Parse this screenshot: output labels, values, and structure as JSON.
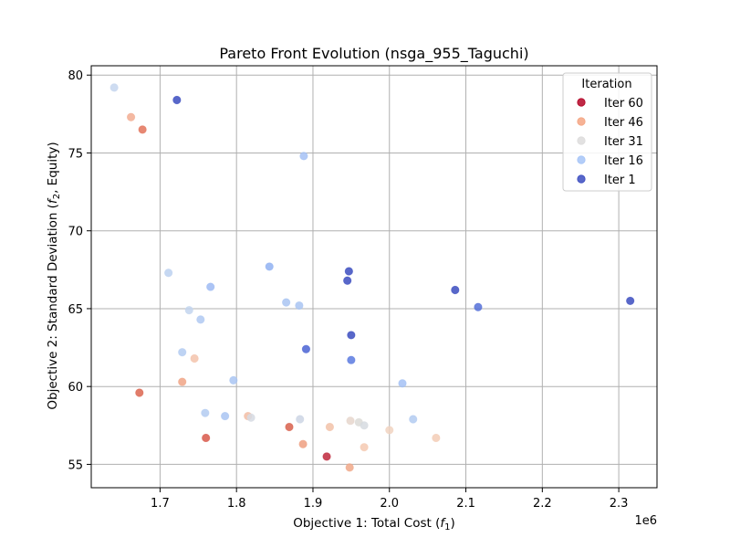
{
  "chart_data": {
    "type": "scatter",
    "title": "Pareto Front Evolution (nsga_955_Taguchi)",
    "xlabel": "Objective 1: Total Cost (f1)",
    "xlabel_main": "Objective 1: Total Cost (",
    "xlabel_var": "f",
    "xlabel_sub": "1",
    "xlabel_end": ")",
    "ylabel_main": "Objective 2: Standard Deviation (",
    "ylabel_var": "f",
    "ylabel_sub": "2",
    "ylabel_end": ", Equity)",
    "x_offset_label": "1e6",
    "xlim": [
      1.61,
      2.35
    ],
    "ylim": [
      53.5,
      80.6
    ],
    "x_ticks": [
      1.7,
      1.8,
      1.9,
      2.0,
      2.1,
      2.2,
      2.3
    ],
    "x_tick_labels": [
      "1.7",
      "1.8",
      "1.9",
      "2.0",
      "2.1",
      "2.2",
      "2.3"
    ],
    "y_ticks": [
      55,
      60,
      65,
      70,
      75,
      80
    ],
    "y_tick_labels": [
      "55",
      "60",
      "65",
      "70",
      "75",
      "80"
    ],
    "grid": true,
    "legend": {
      "title": "Iteration",
      "placement": "top-right"
    },
    "series": [
      {
        "name": "Iter 60",
        "color": "#b40426",
        "points": [
          {
            "x": 1.918,
            "y": 55.5,
            "c": "#c0283c"
          }
        ]
      },
      {
        "name": "Iter 46",
        "color": "#f4a582",
        "points": [
          {
            "x": 1.677,
            "y": 76.5,
            "c": "#e3735a"
          },
          {
            "x": 1.673,
            "y": 59.6,
            "c": "#dc6650"
          },
          {
            "x": 1.76,
            "y": 56.7,
            "c": "#d8584a"
          },
          {
            "x": 1.869,
            "y": 57.4,
            "c": "#d8604c"
          },
          {
            "x": 1.662,
            "y": 77.3,
            "c": "#f2ad92"
          },
          {
            "x": 1.729,
            "y": 60.3,
            "c": "#f0a586"
          },
          {
            "x": 1.887,
            "y": 56.3,
            "c": "#ee9f80"
          },
          {
            "x": 1.948,
            "y": 54.8,
            "c": "#f0a888"
          }
        ]
      },
      {
        "name": "Iter 31",
        "color": "#dddcdc",
        "points": [
          {
            "x": 1.745,
            "y": 61.8,
            "c": "#f3c3ac"
          },
          {
            "x": 1.815,
            "y": 58.1,
            "c": "#f2bda4"
          },
          {
            "x": 1.922,
            "y": 57.4,
            "c": "#f2c2a8"
          },
          {
            "x": 1.967,
            "y": 56.1,
            "c": "#f5c9b1"
          },
          {
            "x": 2.061,
            "y": 56.7,
            "c": "#f3cdb6"
          },
          {
            "x": 2.0,
            "y": 57.2,
            "c": "#f1d3c1"
          },
          {
            "x": 1.949,
            "y": 57.8,
            "c": "#e6d6cc"
          },
          {
            "x": 1.96,
            "y": 57.7,
            "c": "#dcdad7"
          },
          {
            "x": 1.967,
            "y": 57.5,
            "c": "#d6dbe0"
          },
          {
            "x": 1.883,
            "y": 57.9,
            "c": "#ccd5e4"
          },
          {
            "x": 1.819,
            "y": 58.0,
            "c": "#d6dbe3"
          }
        ]
      },
      {
        "name": "Iter 16",
        "color": "#a6c4f7",
        "points": [
          {
            "x": 1.64,
            "y": 79.2,
            "c": "#c6d6ee"
          },
          {
            "x": 1.888,
            "y": 74.8,
            "c": "#a4c1f4"
          },
          {
            "x": 1.711,
            "y": 67.3,
            "c": "#bcd1f0"
          },
          {
            "x": 1.766,
            "y": 66.4,
            "c": "#9dbaf3"
          },
          {
            "x": 1.843,
            "y": 67.7,
            "c": "#90b1f2"
          },
          {
            "x": 1.865,
            "y": 65.4,
            "c": "#a9c4f2"
          },
          {
            "x": 1.882,
            "y": 65.2,
            "c": "#a9c4f2"
          },
          {
            "x": 1.738,
            "y": 64.9,
            "c": "#c3d5ee"
          },
          {
            "x": 1.753,
            "y": 64.3,
            "c": "#b0c9f2"
          },
          {
            "x": 1.729,
            "y": 62.2,
            "c": "#b3cbf1"
          },
          {
            "x": 1.796,
            "y": 60.4,
            "c": "#a9c4f2"
          },
          {
            "x": 2.017,
            "y": 60.2,
            "c": "#a4c1f4"
          },
          {
            "x": 1.759,
            "y": 58.3,
            "c": "#b3cbf1"
          },
          {
            "x": 1.785,
            "y": 58.1,
            "c": "#a9c4f2"
          },
          {
            "x": 2.031,
            "y": 57.9,
            "c": "#b3cbf1"
          }
        ]
      },
      {
        "name": "Iter 1",
        "color": "#3b4cc0",
        "points": [
          {
            "x": 1.722,
            "y": 78.4,
            "c": "#3b4cc0"
          },
          {
            "x": 1.947,
            "y": 67.4,
            "c": "#3b4cc0"
          },
          {
            "x": 1.945,
            "y": 66.8,
            "c": "#3b4cc0"
          },
          {
            "x": 2.086,
            "y": 66.2,
            "c": "#3b4cc0"
          },
          {
            "x": 2.116,
            "y": 65.1,
            "c": "#5570d8"
          },
          {
            "x": 2.315,
            "y": 65.5,
            "c": "#3b4cc0"
          },
          {
            "x": 1.95,
            "y": 63.3,
            "c": "#3b4cc0"
          },
          {
            "x": 1.891,
            "y": 62.4,
            "c": "#4a63d3"
          },
          {
            "x": 1.95,
            "y": 61.7,
            "c": "#5b7ae0"
          }
        ]
      }
    ]
  }
}
